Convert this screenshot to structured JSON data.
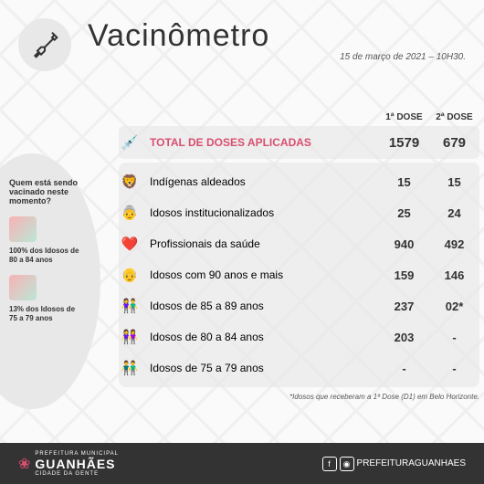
{
  "header": {
    "title": "Vacinômetro",
    "subtitle": "15 de março de 2021 – 10H30."
  },
  "table": {
    "col1_header": "1ª DOSE",
    "col2_header": "2ª DOSE",
    "total": {
      "label": "TOTAL DE DOSES APLICADAS",
      "dose1": "1579",
      "dose2": "679"
    },
    "rows": [
      {
        "icon": "🦁",
        "label": "Indígenas aldeados",
        "dose1": "15",
        "dose2": "15"
      },
      {
        "icon": "👵",
        "label": "Idosos institucionalizados",
        "dose1": "25",
        "dose2": "24"
      },
      {
        "icon": "❤️",
        "label": "Profissionais da saúde",
        "dose1": "940",
        "dose2": "492"
      },
      {
        "icon": "👴",
        "label": "Idosos com 90 anos e mais",
        "dose1": "159",
        "dose2": "146"
      },
      {
        "icon": "👫",
        "label": "Idosos de 85 a 89 anos",
        "dose1": "237",
        "dose2": "02*"
      },
      {
        "icon": "👭",
        "label": "Idosos de 80 a 84 anos",
        "dose1": "203",
        "dose2": "-"
      },
      {
        "icon": "👬",
        "label": "Idosos de 75 a 79 anos",
        "dose1": "-",
        "dose2": "-"
      }
    ],
    "footnote": "*Idosos que receberam a 1ª Dose (D1) em Belo Horizonte."
  },
  "sidebar": {
    "question": "Quem está sendo vacinado neste momento?",
    "items": [
      {
        "text": "100% dos Idosos de 80 a 84 anos"
      },
      {
        "text": "13% dos Idosos de 75 a 79 anos"
      }
    ]
  },
  "footer": {
    "brand_line1": "PREFEITURA MUNICIPAL",
    "brand_main": "GUANHÃES",
    "brand_sub": "CIDADE DA GENTE",
    "handle": "PREFEITURAGUANHAES"
  }
}
